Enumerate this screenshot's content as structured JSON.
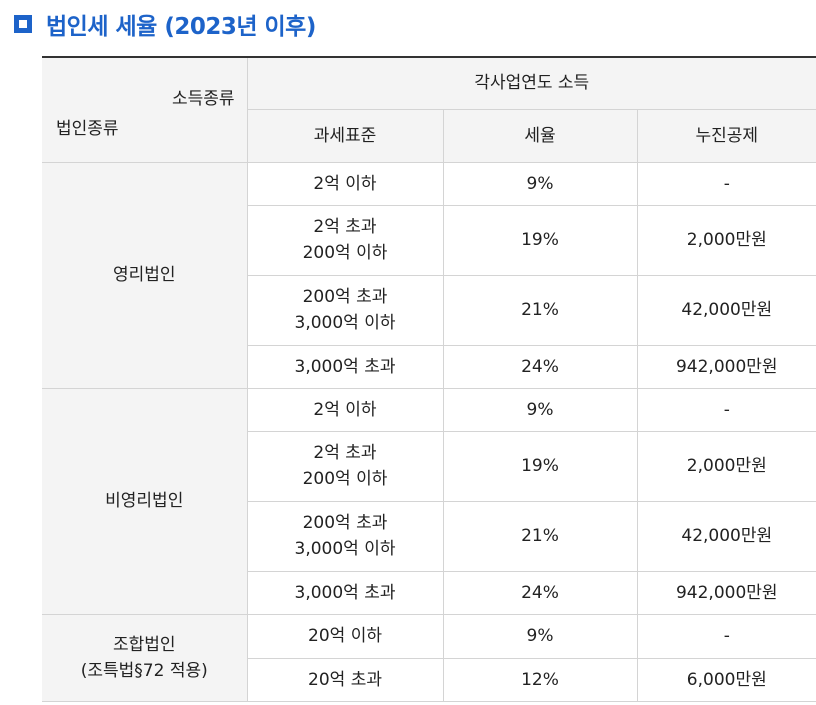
{
  "title": {
    "text": "법인세 세율 (2023년 이후)",
    "color": "#1d63c9"
  },
  "table": {
    "header": {
      "corner_top": "소득종류",
      "corner_bottom": "법인종류",
      "group": "각사업연도 소득",
      "columns": [
        "과세표준",
        "세율",
        "누진공제"
      ]
    },
    "groups": [
      {
        "name": "영리법인",
        "rows": [
          {
            "base": [
              "2억 이하"
            ],
            "rate": "9%",
            "deduction": "-"
          },
          {
            "base": [
              "2억 초과",
              "200억 이하"
            ],
            "rate": "19%",
            "deduction": "2,000만원"
          },
          {
            "base": [
              "200억 초과",
              "3,000억 이하"
            ],
            "rate": "21%",
            "deduction": "42,000만원"
          },
          {
            "base": [
              "3,000억 초과"
            ],
            "rate": "24%",
            "deduction": "942,000만원"
          }
        ]
      },
      {
        "name": "비영리법인",
        "rows": [
          {
            "base": [
              "2억 이하"
            ],
            "rate": "9%",
            "deduction": "-"
          },
          {
            "base": [
              "2억 초과",
              "200억 이하"
            ],
            "rate": "19%",
            "deduction": "2,000만원"
          },
          {
            "base": [
              "200억 초과",
              "3,000억 이하"
            ],
            "rate": "21%",
            "deduction": "42,000만원"
          },
          {
            "base": [
              "3,000억 초과"
            ],
            "rate": "24%",
            "deduction": "942,000만원"
          }
        ]
      },
      {
        "name": "조합법인",
        "subname": "(조특법§72 적용)",
        "rows": [
          {
            "base": [
              "20억 이하"
            ],
            "rate": "9%",
            "deduction": "-"
          },
          {
            "base": [
              "20억 초과"
            ],
            "rate": "12%",
            "deduction": "6,000만원"
          }
        ]
      }
    ]
  }
}
